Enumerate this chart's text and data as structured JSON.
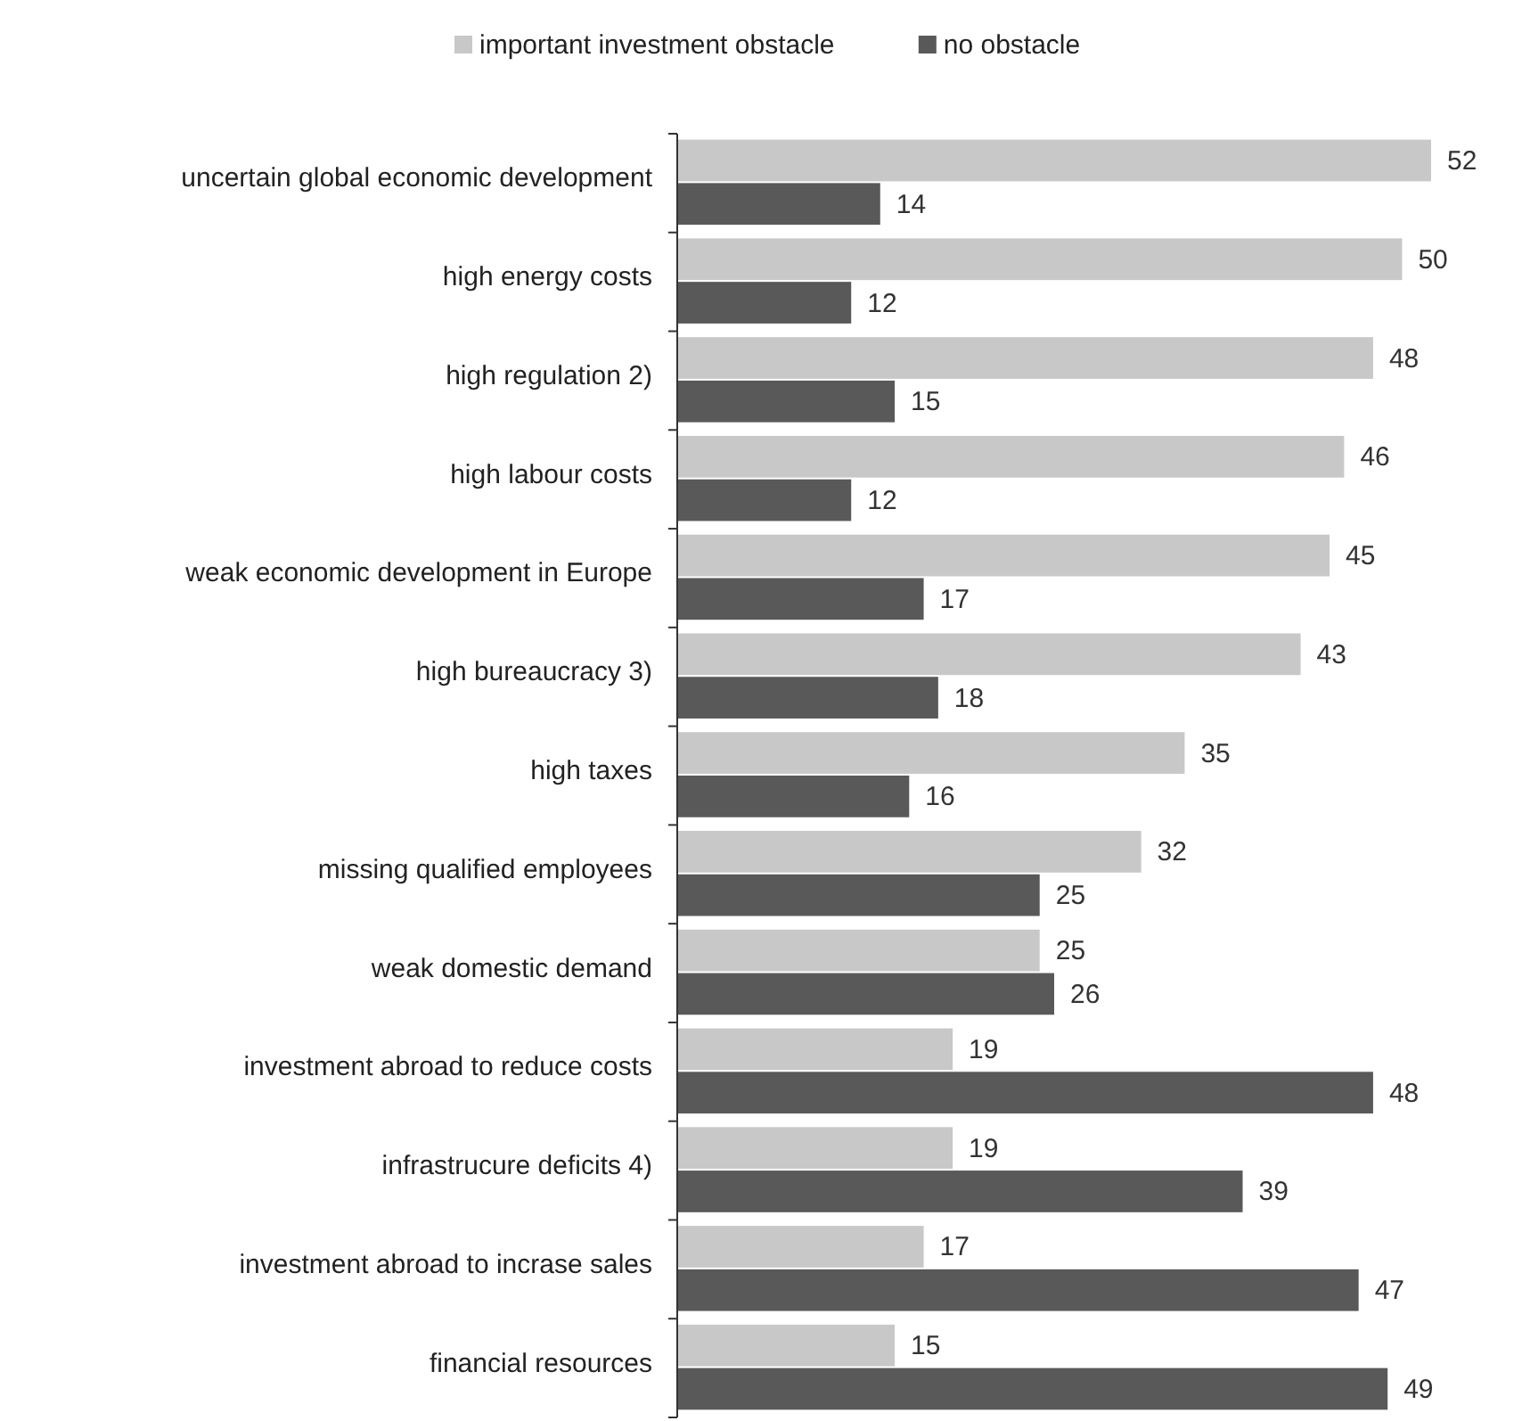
{
  "chart_data": {
    "type": "bar",
    "orientation": "horizontal",
    "categories": [
      "uncertain global economic development",
      "high energy costs",
      "high regulation 2)",
      "high labour costs",
      "weak economic development in Europe",
      "high bureaucracy 3)",
      "high taxes",
      "missing qualified employees",
      "weak domestic demand",
      "investment abroad to reduce costs",
      "infrastrucure deficits 4)",
      "investment abroad to incrase sales",
      "financial resources"
    ],
    "series": [
      {
        "name": "important investment obstacle",
        "color": "#c8c8c8",
        "values": [
          52,
          50,
          48,
          46,
          45,
          43,
          35,
          32,
          25,
          19,
          19,
          17,
          15
        ]
      },
      {
        "name": "no obstacle",
        "color": "#595959",
        "values": [
          14,
          12,
          15,
          12,
          17,
          18,
          16,
          25,
          26,
          48,
          39,
          47,
          49
        ]
      }
    ],
    "data_labels": true,
    "legend": "top"
  }
}
